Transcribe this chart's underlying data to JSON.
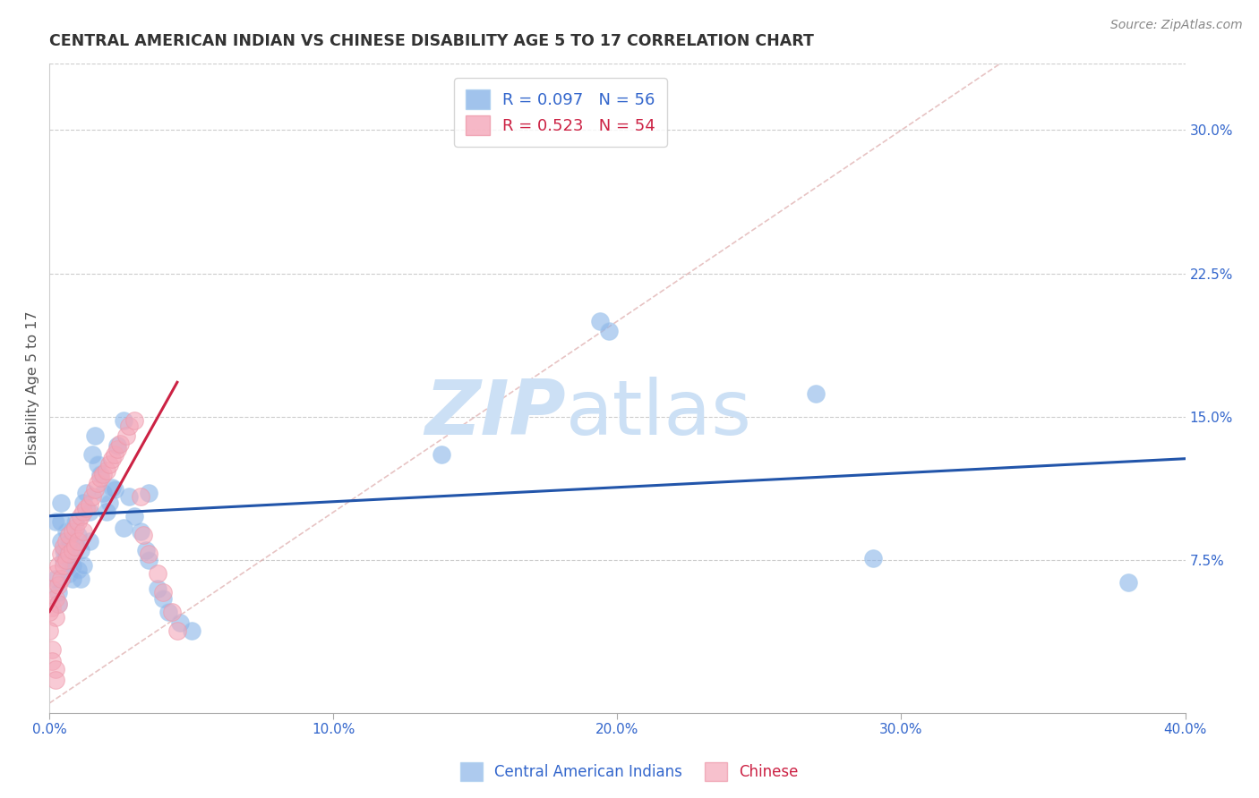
{
  "title": "CENTRAL AMERICAN INDIAN VS CHINESE DISABILITY AGE 5 TO 17 CORRELATION CHART",
  "source": "Source: ZipAtlas.com",
  "ylabel": "Disability Age 5 to 17",
  "xlim": [
    0.0,
    0.4
  ],
  "ylim": [
    -0.005,
    0.335
  ],
  "x_ticks": [
    0.0,
    0.1,
    0.2,
    0.3,
    0.4
  ],
  "x_tick_labels": [
    "0.0%",
    "10.0%",
    "20.0%",
    "30.0%",
    "40.0%"
  ],
  "y_ticks": [
    0.075,
    0.15,
    0.225,
    0.3
  ],
  "y_tick_labels": [
    "7.5%",
    "15.0%",
    "22.5%",
    "30.0%"
  ],
  "legend1_label": "R = 0.097   N = 56",
  "legend2_label": "R = 0.523   N = 54",
  "legend_group1": "Central American Indians",
  "legend_group2": "Chinese",
  "blue_color": "#8ab4e8",
  "pink_color": "#f4a7b9",
  "blue_line_color": "#2255aa",
  "pink_line_color": "#cc2244",
  "blue_scatter_x": [
    0.004,
    0.004,
    0.004,
    0.005,
    0.005,
    0.006,
    0.006,
    0.007,
    0.007,
    0.007,
    0.008,
    0.008,
    0.009,
    0.009,
    0.01,
    0.01,
    0.011,
    0.011,
    0.012,
    0.012,
    0.013,
    0.014,
    0.014,
    0.015,
    0.016,
    0.017,
    0.018,
    0.019,
    0.02,
    0.021,
    0.022,
    0.023,
    0.024,
    0.026,
    0.026,
    0.028,
    0.03,
    0.032,
    0.034,
    0.035,
    0.035,
    0.038,
    0.04,
    0.042,
    0.046,
    0.05,
    0.002,
    0.002,
    0.003,
    0.003,
    0.194,
    0.197,
    0.138,
    0.27,
    0.29,
    0.38
  ],
  "blue_scatter_y": [
    0.105,
    0.095,
    0.085,
    0.08,
    0.075,
    0.09,
    0.078,
    0.085,
    0.075,
    0.068,
    0.072,
    0.065,
    0.095,
    0.082,
    0.088,
    0.07,
    0.08,
    0.065,
    0.105,
    0.072,
    0.11,
    0.1,
    0.085,
    0.13,
    0.14,
    0.125,
    0.12,
    0.11,
    0.1,
    0.105,
    0.113,
    0.112,
    0.135,
    0.148,
    0.092,
    0.108,
    0.098,
    0.09,
    0.08,
    0.11,
    0.075,
    0.06,
    0.055,
    0.048,
    0.042,
    0.038,
    0.095,
    0.065,
    0.058,
    0.052,
    0.2,
    0.195,
    0.13,
    0.162,
    0.076,
    0.063
  ],
  "pink_scatter_x": [
    0.001,
    0.001,
    0.002,
    0.002,
    0.002,
    0.003,
    0.003,
    0.003,
    0.004,
    0.004,
    0.005,
    0.005,
    0.006,
    0.006,
    0.007,
    0.007,
    0.008,
    0.008,
    0.009,
    0.009,
    0.01,
    0.01,
    0.011,
    0.012,
    0.012,
    0.013,
    0.014,
    0.015,
    0.016,
    0.017,
    0.018,
    0.019,
    0.02,
    0.021,
    0.022,
    0.023,
    0.024,
    0.025,
    0.027,
    0.028,
    0.03,
    0.032,
    0.033,
    0.035,
    0.038,
    0.04,
    0.043,
    0.045,
    0.0,
    0.0,
    0.001,
    0.001,
    0.002,
    0.002
  ],
  "pink_scatter_y": [
    0.06,
    0.05,
    0.068,
    0.055,
    0.045,
    0.072,
    0.062,
    0.052,
    0.078,
    0.065,
    0.082,
    0.072,
    0.085,
    0.075,
    0.088,
    0.078,
    0.09,
    0.08,
    0.092,
    0.082,
    0.095,
    0.085,
    0.098,
    0.1,
    0.09,
    0.102,
    0.104,
    0.108,
    0.112,
    0.115,
    0.118,
    0.12,
    0.122,
    0.125,
    0.128,
    0.13,
    0.133,
    0.136,
    0.14,
    0.145,
    0.148,
    0.108,
    0.088,
    0.078,
    0.068,
    0.058,
    0.048,
    0.038,
    0.048,
    0.038,
    0.028,
    0.022,
    0.018,
    0.012
  ],
  "blue_line_x": [
    0.0,
    0.4
  ],
  "blue_line_y": [
    0.098,
    0.128
  ],
  "pink_line_x": [
    0.0,
    0.045
  ],
  "pink_line_y": [
    0.048,
    0.168
  ],
  "diag_line_x": [
    0.0,
    0.335
  ],
  "diag_line_y": [
    0.0,
    0.335
  ]
}
